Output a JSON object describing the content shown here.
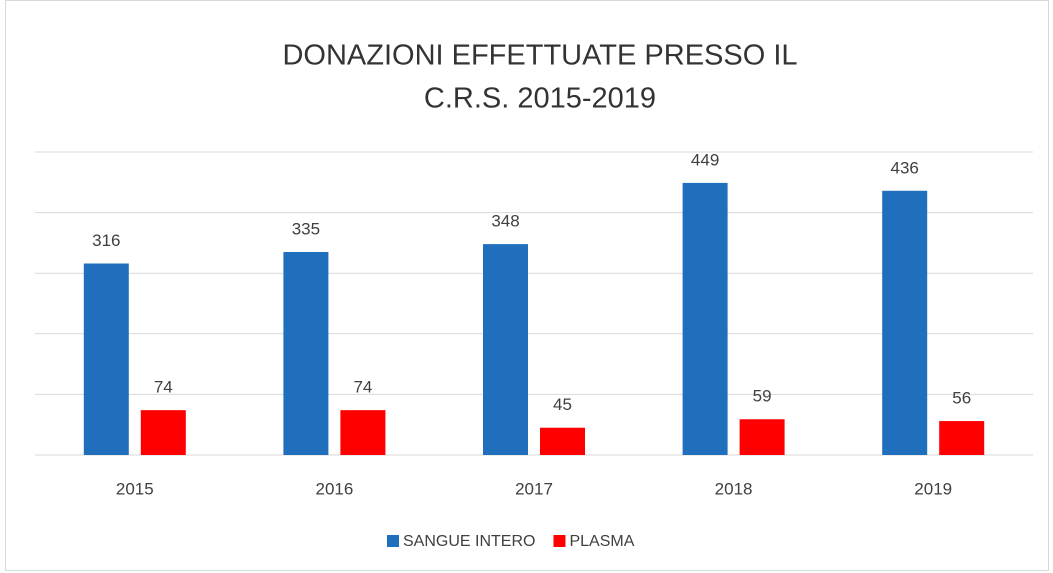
{
  "chart_data": {
    "type": "bar",
    "title": [
      "DONAZIONI EFFETTUATE PRESSO IL",
      "C.R.S. 2015-2019"
    ],
    "categories": [
      "2015",
      "2016",
      "2017",
      "2018",
      "2019"
    ],
    "series": [
      {
        "name": "SANGUE INTERO",
        "color": "#1f6fbd",
        "values": [
          316,
          335,
          348,
          449,
          436
        ]
      },
      {
        "name": "PLASMA",
        "color": "#ff0000",
        "values": [
          74,
          74,
          45,
          59,
          56
        ]
      }
    ],
    "ylim": [
      0,
      500
    ],
    "yticks": [
      0,
      100,
      200,
      300,
      400,
      500
    ],
    "grid": true,
    "legend": "bottom"
  }
}
